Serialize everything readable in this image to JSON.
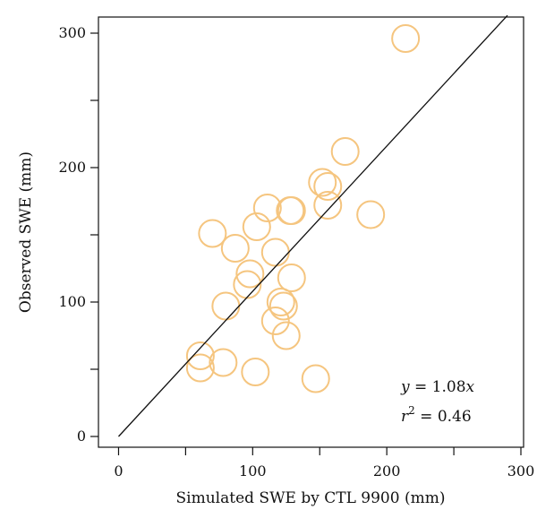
{
  "chart_data": {
    "type": "scatter",
    "xlabel": "Simulated SWE by CTL 9900 (mm)",
    "ylabel": "Observed SWE (mm)",
    "xlim": [
      -15,
      302
    ],
    "ylim": [
      -8,
      312
    ],
    "xticks": [
      0,
      100,
      200,
      300
    ],
    "xticks_minor": [
      50,
      150,
      250
    ],
    "yticks": [
      0,
      100,
      200,
      300
    ],
    "yticks_minor": [
      50,
      150,
      250
    ],
    "grid": false,
    "legend": "none",
    "marker_color": "#f5c57f",
    "points": [
      {
        "x": 214,
        "y": 296
      },
      {
        "x": 169,
        "y": 212
      },
      {
        "x": 152,
        "y": 189
      },
      {
        "x": 156,
        "y": 186
      },
      {
        "x": 156,
        "y": 172
      },
      {
        "x": 188,
        "y": 165
      },
      {
        "x": 111,
        "y": 170
      },
      {
        "x": 128,
        "y": 168
      },
      {
        "x": 129,
        "y": 168
      },
      {
        "x": 103,
        "y": 156
      },
      {
        "x": 70,
        "y": 151
      },
      {
        "x": 87,
        "y": 140
      },
      {
        "x": 117,
        "y": 137
      },
      {
        "x": 98,
        "y": 121
      },
      {
        "x": 96,
        "y": 113
      },
      {
        "x": 129,
        "y": 118
      },
      {
        "x": 80,
        "y": 97
      },
      {
        "x": 121,
        "y": 100
      },
      {
        "x": 123,
        "y": 97
      },
      {
        "x": 117,
        "y": 86
      },
      {
        "x": 125,
        "y": 75
      },
      {
        "x": 61,
        "y": 60
      },
      {
        "x": 61,
        "y": 51
      },
      {
        "x": 78,
        "y": 55
      },
      {
        "x": 102,
        "y": 48
      },
      {
        "x": 147,
        "y": 43
      }
    ],
    "fit_line": {
      "slope": 1.08,
      "x_range": [
        0,
        290
      ]
    },
    "annotations": [
      {
        "var": "y",
        "rest": " = 1.08",
        "var2": "x"
      },
      {
        "var": "r",
        "sup": "2",
        "rest": " = 0.46"
      }
    ]
  }
}
